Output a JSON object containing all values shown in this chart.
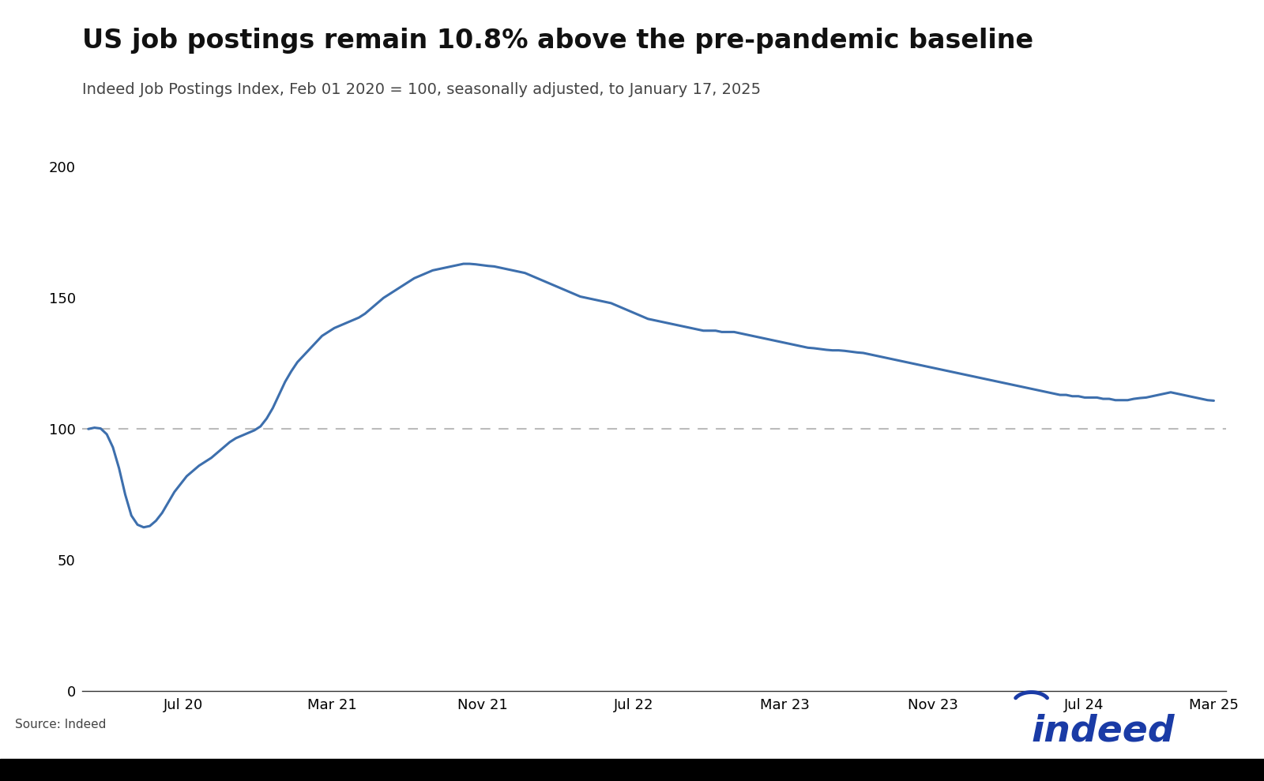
{
  "title": "US job postings remain 10.8% above the pre-pandemic baseline",
  "subtitle": "Indeed Job Postings Index, Feb 01 2020 = 100, seasonally adjusted, to January 17, 2025",
  "source": "Source: Indeed",
  "line_color": "#3d6fad",
  "dashed_line_color": "#bbbbbb",
  "background_color": "#ffffff",
  "title_fontsize": 24,
  "subtitle_fontsize": 14,
  "tick_fontsize": 13,
  "ylim": [
    0,
    210
  ],
  "yticks": [
    0,
    50,
    100,
    150,
    200
  ],
  "x_tick_labels": [
    "Jul 20",
    "Mar 21",
    "Nov 21",
    "Jul 22",
    "Mar 23",
    "Nov 23",
    "Jul 24",
    "Mar 25"
  ],
  "data_points": [
    100.0,
    100.5,
    100.2,
    98.0,
    93.0,
    85.0,
    75.0,
    67.0,
    63.5,
    62.5,
    63.0,
    65.0,
    68.0,
    72.0,
    76.0,
    79.0,
    82.0,
    84.0,
    86.0,
    87.5,
    89.0,
    91.0,
    93.0,
    95.0,
    96.5,
    97.5,
    98.5,
    99.5,
    101.0,
    104.0,
    108.0,
    113.0,
    118.0,
    122.0,
    125.5,
    128.0,
    130.5,
    133.0,
    135.5,
    137.0,
    138.5,
    139.5,
    140.5,
    141.5,
    142.5,
    144.0,
    146.0,
    148.0,
    150.0,
    151.5,
    153.0,
    154.5,
    156.0,
    157.5,
    158.5,
    159.5,
    160.5,
    161.0,
    161.5,
    162.0,
    162.5,
    163.0,
    163.0,
    162.8,
    162.5,
    162.2,
    162.0,
    161.5,
    161.0,
    160.5,
    160.0,
    159.5,
    158.5,
    157.5,
    156.5,
    155.5,
    154.5,
    153.5,
    152.5,
    151.5,
    150.5,
    150.0,
    149.5,
    149.0,
    148.5,
    148.0,
    147.0,
    146.0,
    145.0,
    144.0,
    143.0,
    142.0,
    141.5,
    141.0,
    140.5,
    140.0,
    139.5,
    139.0,
    138.5,
    138.0,
    137.5,
    137.5,
    137.5,
    137.0,
    137.0,
    137.0,
    136.5,
    136.0,
    135.5,
    135.0,
    134.5,
    134.0,
    133.5,
    133.0,
    132.5,
    132.0,
    131.5,
    131.0,
    130.8,
    130.5,
    130.2,
    130.0,
    130.0,
    129.8,
    129.5,
    129.2,
    129.0,
    128.5,
    128.0,
    127.5,
    127.0,
    126.5,
    126.0,
    125.5,
    125.0,
    124.5,
    124.0,
    123.5,
    123.0,
    122.5,
    122.0,
    121.5,
    121.0,
    120.5,
    120.0,
    119.5,
    119.0,
    118.5,
    118.0,
    117.5,
    117.0,
    116.5,
    116.0,
    115.5,
    115.0,
    114.5,
    114.0,
    113.5,
    113.0,
    113.0,
    112.5,
    112.5,
    112.0,
    112.0,
    112.0,
    111.5,
    111.5,
    111.0,
    111.0,
    111.0,
    111.5,
    111.8,
    112.0,
    112.5,
    113.0,
    113.5,
    114.0,
    113.5,
    113.0,
    112.5,
    112.0,
    111.5,
    111.0,
    110.8
  ]
}
